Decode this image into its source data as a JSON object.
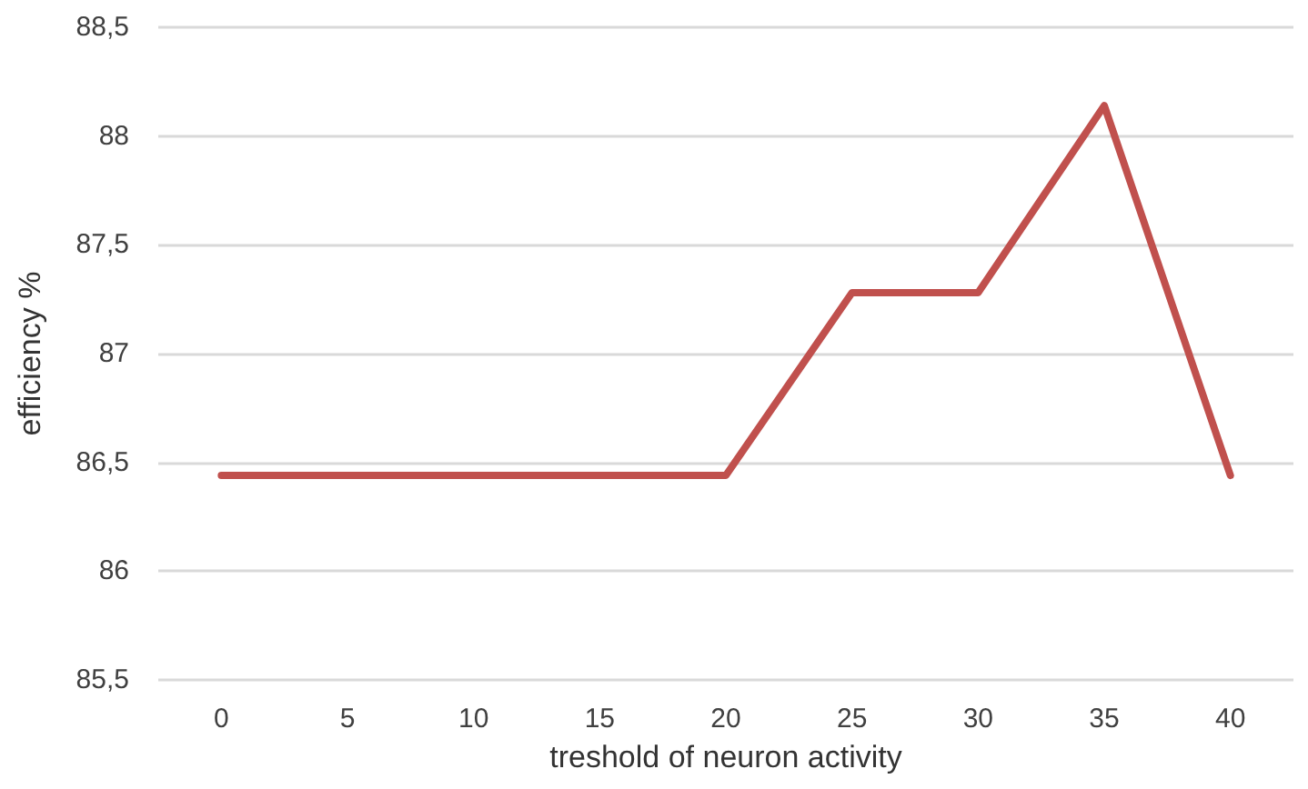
{
  "chart_data": {
    "type": "line",
    "xlabel": "treshold of neuron activity",
    "ylabel": "efficiency %",
    "categories": [
      "0",
      "5",
      "10",
      "15",
      "20",
      "25",
      "30",
      "35",
      "40"
    ],
    "series": [
      {
        "color": "#c0504d",
        "values": [
          86.44,
          86.44,
          86.44,
          86.44,
          86.44,
          87.28,
          87.28,
          88.14,
          86.44
        ]
      }
    ],
    "ylim": [
      85.5,
      88.5
    ],
    "yticks": [
      {
        "value": 85.5,
        "label": "85,5"
      },
      86,
      {
        "value": 86.5,
        "label": "86,5"
      },
      87,
      {
        "value": 87.5,
        "label": "87,5"
      },
      88,
      {
        "value": 88.5,
        "label": "88,5"
      }
    ],
    "grid": "y",
    "marker": "none",
    "line_style": "solid"
  }
}
